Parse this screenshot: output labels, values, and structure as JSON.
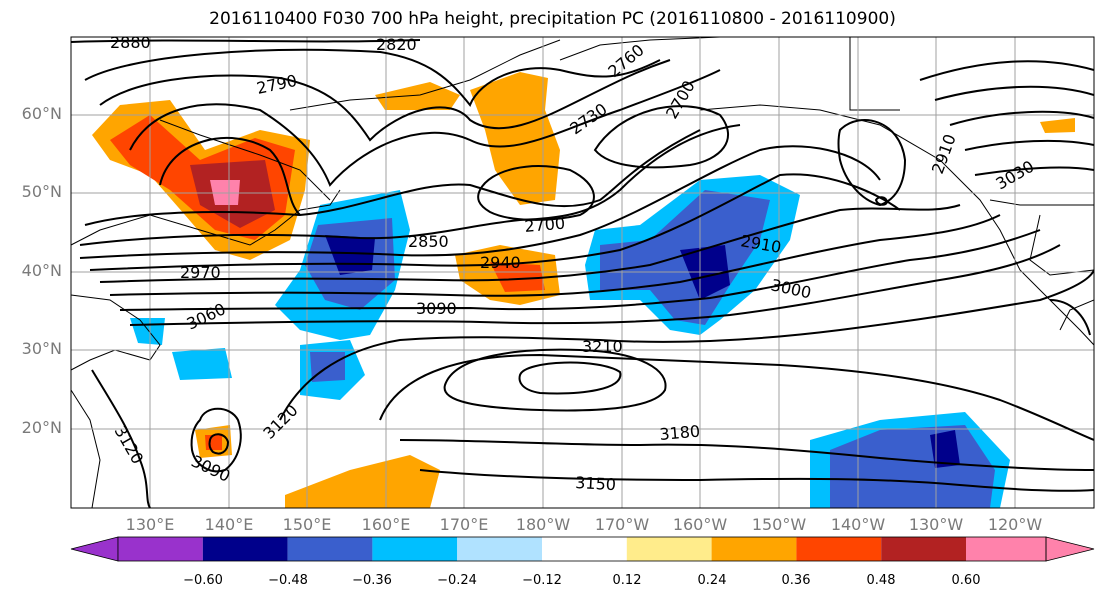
{
  "title": "2016110400 F030 700 hPa height, precipitation PC (2016110800 - 2016110900)",
  "map": {
    "lat_labels": [
      "60°N",
      "50°N",
      "40°N",
      "30°N",
      "20°N"
    ],
    "lon_labels": [
      "130°E",
      "140°E",
      "150°E",
      "160°E",
      "170°E",
      "180°W",
      "170°W",
      "160°W",
      "150°W",
      "140°W",
      "130°W",
      "120°W"
    ],
    "contour_labels": [
      "2880",
      "2820",
      "2790",
      "2760",
      "2730",
      "2700",
      "2700",
      "2850",
      "2970",
      "2940",
      "2910",
      "3000",
      "3030",
      "2910",
      "3060",
      "3090",
      "3210",
      "3120",
      "3120",
      "3090",
      "3180",
      "3150"
    ]
  },
  "colorbar": {
    "colors": [
      "#9932cc",
      "#00008b",
      "#3a5fcd",
      "#00bfff",
      "#b0e2ff",
      "#ffffff",
      "#ffec8b",
      "#ffa500",
      "#ff4500",
      "#b22222",
      "#ff82ab"
    ],
    "tick_labels": [
      "−0.60",
      "−0.48",
      "−0.36",
      "−0.24",
      "−0.12",
      "0.12",
      "0.24",
      "0.36",
      "0.48",
      "0.60"
    ]
  }
}
